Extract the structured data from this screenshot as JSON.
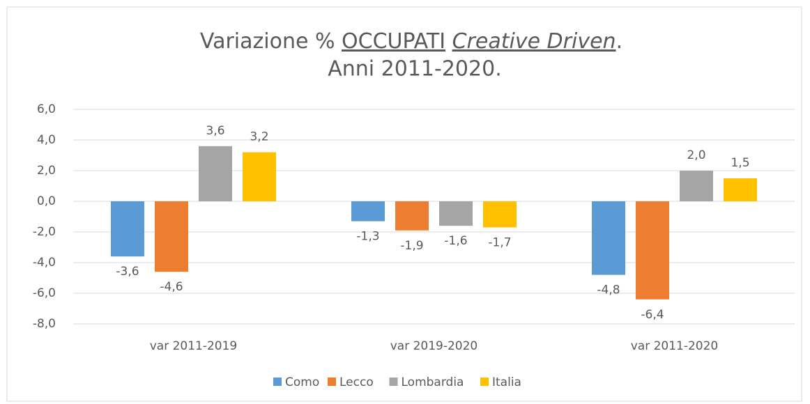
{
  "chart_data": {
    "type": "bar",
    "title": [
      "Variazione %",
      "OCCUPATI",
      "Creative Driven",
      ".",
      "Anni 2011-2020."
    ],
    "categories": [
      "var 2011-2019",
      "var 2019-2020",
      "var 2011-2020"
    ],
    "series": [
      {
        "name": "Como",
        "color": "#5b9bd5",
        "values": [
          -3.6,
          -1.3,
          -4.8
        ],
        "value_labels": [
          "-3,6",
          "-1,3",
          "-4,8"
        ]
      },
      {
        "name": "Lecco",
        "color": "#ed7d31",
        "values": [
          -4.6,
          -1.9,
          -6.4
        ],
        "value_labels": [
          "-4,6",
          "-1,9",
          "-6,4"
        ]
      },
      {
        "name": "Lombardia",
        "color": "#a5a5a5",
        "values": [
          3.6,
          -1.6,
          2.0
        ],
        "value_labels": [
          "3,6",
          "-1,6",
          "2,0"
        ]
      },
      {
        "name": "Italia",
        "color": "#ffc000",
        "values": [
          3.2,
          -1.7,
          1.5
        ],
        "value_labels": [
          "3,2",
          "-1,7",
          "1,5"
        ]
      }
    ],
    "ylim": [
      -8,
      6
    ],
    "yticks": [
      {
        "value": -8,
        "label": "-8,0"
      },
      {
        "value": -6,
        "label": "-6,0"
      },
      {
        "value": -4,
        "label": "-4,0"
      },
      {
        "value": -2,
        "label": "-2,0"
      },
      {
        "value": 0,
        "label": "0,0"
      },
      {
        "value": 2,
        "label": "2,0"
      },
      {
        "value": 4,
        "label": "4,0"
      },
      {
        "value": 6,
        "label": "6,0"
      }
    ],
    "grid": true,
    "legend": "bottom"
  }
}
